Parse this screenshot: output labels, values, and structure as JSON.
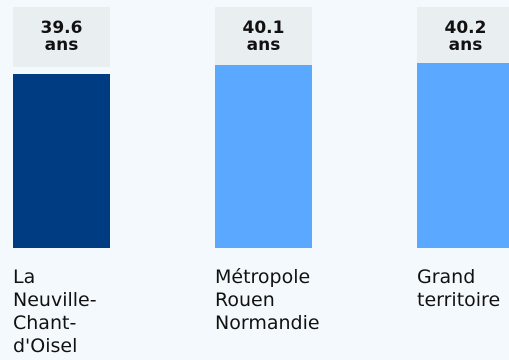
{
  "chart_data": {
    "type": "bar",
    "categories": [
      "La\nNeuville-\nChant-\nd'Oisel",
      "Métropole\nRouen\nNormandie",
      "Grand\nterritoire"
    ],
    "series": [
      {
        "values": [
          39.6,
          40.1,
          40.2
        ],
        "value_labels": [
          "39.6",
          "40.1",
          "40.2"
        ],
        "unit": "ans",
        "colors": [
          "#003c82",
          "#5aa8ff",
          "#5aa8ff"
        ]
      }
    ]
  }
}
